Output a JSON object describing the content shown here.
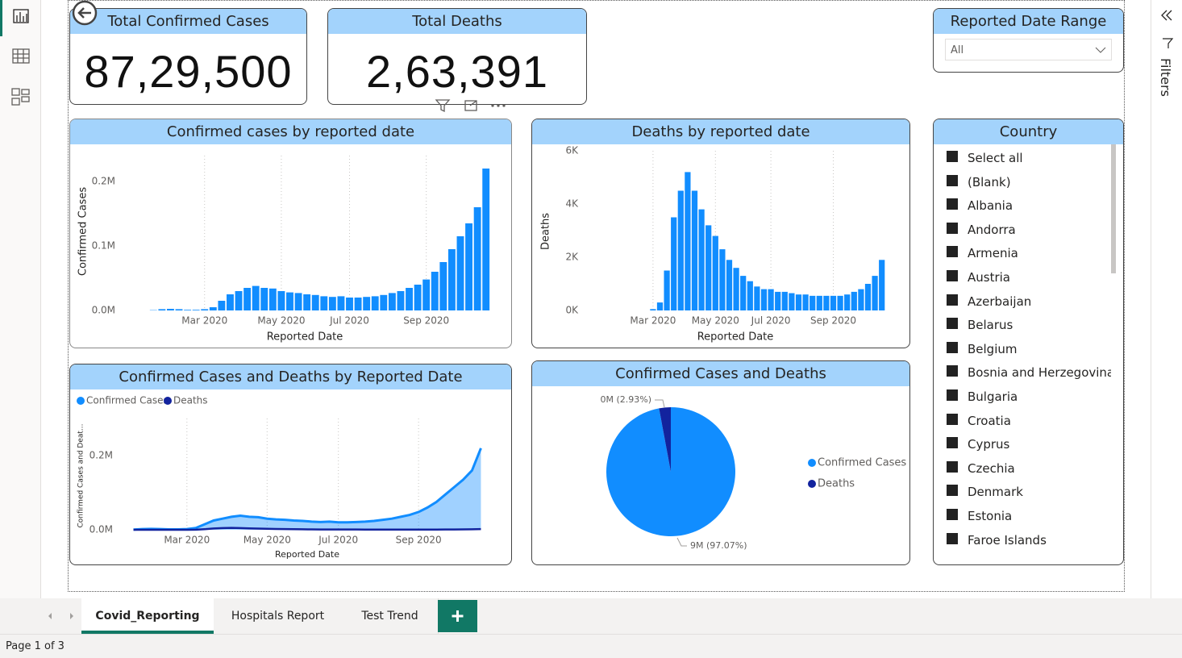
{
  "cards": [
    {
      "title": "Total Confirmed Cases",
      "value": "87,29,500"
    },
    {
      "title": "Total Deaths",
      "value": "2,63,391"
    }
  ],
  "date_slicer": {
    "title": "Reported Date Range",
    "selection": "All"
  },
  "country_slicer": {
    "title": "Country",
    "items": [
      "Select all",
      "(Blank)",
      "Albania",
      "Andorra",
      "Armenia",
      "Austria",
      "Azerbaijan",
      "Belarus",
      "Belgium",
      "Bosnia and Herzegovina",
      "Bulgaria",
      "Croatia",
      "Cyprus",
      "Czechia",
      "Denmark",
      "Estonia",
      "Faroe Islands"
    ]
  },
  "chart_data": [
    {
      "type": "bar",
      "title": "Confirmed cases by reported date",
      "x_label": "Reported Date",
      "y_label": "Confirmed Cases",
      "color": "#118dff",
      "categories": [
        null,
        null,
        null,
        null,
        null,
        null,
        "Mar 2020",
        null,
        null,
        null,
        null,
        null,
        null,
        null,
        null,
        "May 2020",
        null,
        null,
        null,
        null,
        null,
        null,
        null,
        "Jul 2020",
        null,
        null,
        null,
        null,
        null,
        null,
        null,
        null,
        "Sep 2020",
        null,
        null,
        null,
        null,
        null,
        null,
        null
      ],
      "values": [
        500,
        2000,
        2500,
        2000,
        1000,
        1000,
        2000,
        5000,
        15000,
        25000,
        30000,
        35000,
        38000,
        35000,
        34000,
        30000,
        28000,
        27000,
        25000,
        24000,
        22000,
        21000,
        22000,
        20000,
        20000,
        21000,
        22000,
        24000,
        27000,
        30000,
        35000,
        40000,
        48000,
        60000,
        75000,
        95000,
        115000,
        135000,
        160000,
        220000
      ],
      "ylim": [
        0,
        240000
      ],
      "yticks": [
        {
          "value": 0,
          "label": "0.0M"
        },
        {
          "value": 100000,
          "label": "0.1M"
        },
        {
          "value": 200000,
          "label": "0.2M"
        }
      ]
    },
    {
      "type": "bar",
      "title": "Deaths by reported date",
      "x_label": "Reported Date",
      "y_label": "Deaths",
      "color": "#118dff",
      "categories": [
        null,
        null,
        null,
        null,
        null,
        null,
        "Mar 2020",
        null,
        null,
        null,
        null,
        null,
        null,
        null,
        null,
        "May 2020",
        null,
        null,
        null,
        null,
        null,
        null,
        null,
        "Jul 2020",
        null,
        null,
        null,
        null,
        null,
        null,
        null,
        null,
        "Sep 2020",
        null,
        null,
        null,
        null,
        null,
        null,
        null
      ],
      "values": [
        0,
        0,
        0,
        0,
        0,
        0,
        50,
        300,
        1500,
        3500,
        4500,
        5200,
        4500,
        3800,
        3200,
        2800,
        2300,
        1900,
        1600,
        1300,
        1100,
        900,
        800,
        800,
        700,
        700,
        650,
        600,
        600,
        550,
        550,
        550,
        550,
        550,
        600,
        700,
        800,
        1000,
        1300,
        1900
      ],
      "ylim": [
        0,
        6000
      ],
      "yticks": [
        {
          "value": 0,
          "label": "0K"
        },
        {
          "value": 2000,
          "label": "2K"
        },
        {
          "value": 4000,
          "label": "4K"
        },
        {
          "value": 6000,
          "label": "6K"
        }
      ]
    },
    {
      "type": "line",
      "title": "Confirmed Cases and Deaths by Reported Date",
      "x_label": "Reported Date",
      "y_label": "Confirmed Cases and Deat...",
      "categories": [
        null,
        null,
        null,
        null,
        null,
        null,
        "Mar 2020",
        null,
        null,
        null,
        null,
        null,
        null,
        null,
        null,
        "May 2020",
        null,
        null,
        null,
        null,
        null,
        null,
        null,
        "Jul 2020",
        null,
        null,
        null,
        null,
        null,
        null,
        null,
        null,
        "Sep 2020",
        null,
        null,
        null,
        null,
        null,
        null,
        null
      ],
      "series": [
        {
          "name": "Confirmed Cases",
          "color": "#118dff",
          "values": [
            500,
            2000,
            2500,
            2000,
            1000,
            1000,
            2000,
            5000,
            15000,
            25000,
            30000,
            35000,
            38000,
            35000,
            34000,
            30000,
            28000,
            27000,
            25000,
            24000,
            22000,
            21000,
            22000,
            20000,
            20000,
            21000,
            22000,
            24000,
            27000,
            30000,
            35000,
            40000,
            48000,
            60000,
            75000,
            95000,
            115000,
            135000,
            160000,
            220000
          ]
        },
        {
          "name": "Deaths",
          "color": "#12239e",
          "values": [
            0,
            0,
            0,
            0,
            0,
            0,
            50,
            300,
            1500,
            3500,
            4500,
            5200,
            4500,
            3800,
            3200,
            2800,
            2300,
            1900,
            1600,
            1300,
            1100,
            900,
            800,
            800,
            700,
            700,
            650,
            600,
            600,
            550,
            550,
            550,
            550,
            550,
            600,
            700,
            800,
            1000,
            1300,
            1900
          ]
        }
      ],
      "ylim": [
        0,
        300000
      ],
      "yticks": [
        {
          "value": 0,
          "label": "0.0M"
        },
        {
          "value": 200000,
          "label": "0.2M"
        }
      ],
      "legend": "top-left"
    },
    {
      "type": "pie",
      "title": "Confirmed Cases and Deaths",
      "categories": [
        "Confirmed Cases",
        "Deaths"
      ],
      "values": [
        8729500,
        263391
      ],
      "value_labels": [
        "9M (97.07%)",
        "0M (2.93%)"
      ],
      "colors": [
        "#118dff",
        "#12239e"
      ],
      "legend": "right"
    }
  ],
  "tabs": [
    "Covid_Reporting",
    "Hospitals Report",
    "Test Trend"
  ],
  "status": "Page 1 of 3",
  "filters_pane": "Filters"
}
